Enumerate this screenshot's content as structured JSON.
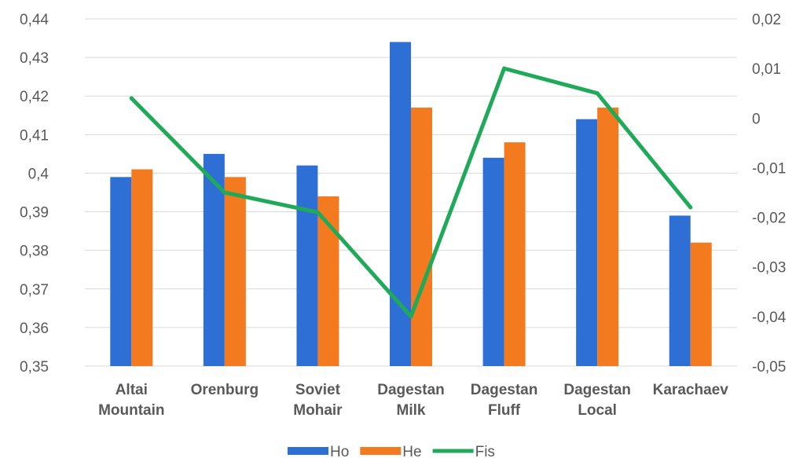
{
  "chart_data": {
    "type": "bar",
    "categories": [
      [
        "Altai",
        "Mountain"
      ],
      [
        "Orenburg"
      ],
      [
        "Soviet",
        "Mohair"
      ],
      [
        "Dagestan",
        "Milk"
      ],
      [
        "Dagestan",
        "Fluff"
      ],
      [
        "Dagestan",
        "Local"
      ],
      [
        "Karachaev"
      ]
    ],
    "series": [
      {
        "name": "Ho",
        "type": "bar",
        "axis": "left",
        "color": "#2e6fd6",
        "values": [
          0.399,
          0.405,
          0.402,
          0.434,
          0.404,
          0.414,
          0.389
        ]
      },
      {
        "name": "He",
        "type": "bar",
        "axis": "left",
        "color": "#f47a20",
        "values": [
          0.401,
          0.399,
          0.394,
          0.417,
          0.408,
          0.417,
          0.382
        ]
      },
      {
        "name": "Fis",
        "type": "line",
        "axis": "right",
        "color": "#1faa5a",
        "values": [
          0.004,
          -0.015,
          -0.019,
          -0.04,
          0.01,
          0.005,
          -0.018
        ]
      }
    ],
    "y_left": {
      "min": 0.35,
      "max": 0.44,
      "ticks": [
        "0,35",
        "0,36",
        "0,37",
        "0,38",
        "0,39",
        "0,4",
        "0,41",
        "0,42",
        "0,43",
        "0,44"
      ]
    },
    "y_right": {
      "min": -0.05,
      "max": 0.02,
      "ticks": [
        "-0,05",
        "-0,04",
        "-0,03",
        "-0,02",
        "-0,01",
        "0",
        "0,01",
        "0,02"
      ]
    },
    "grid": true,
    "legend": "bottom"
  }
}
